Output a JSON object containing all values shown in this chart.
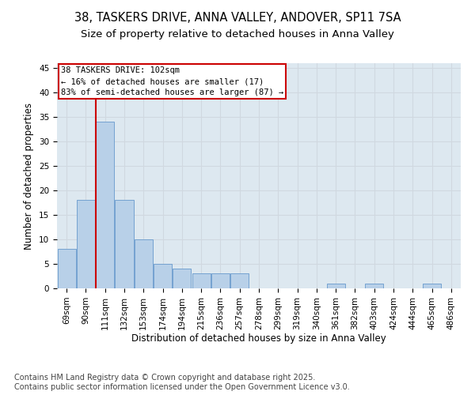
{
  "title_line1": "38, TASKERS DRIVE, ANNA VALLEY, ANDOVER, SP11 7SA",
  "title_line2": "Size of property relative to detached houses in Anna Valley",
  "xlabel": "Distribution of detached houses by size in Anna Valley",
  "ylabel": "Number of detached properties",
  "categories": [
    "69sqm",
    "90sqm",
    "111sqm",
    "132sqm",
    "153sqm",
    "174sqm",
    "194sqm",
    "215sqm",
    "236sqm",
    "257sqm",
    "278sqm",
    "299sqm",
    "319sqm",
    "340sqm",
    "361sqm",
    "382sqm",
    "403sqm",
    "424sqm",
    "444sqm",
    "465sqm",
    "486sqm"
  ],
  "values": [
    8,
    18,
    34,
    18,
    10,
    5,
    4,
    3,
    3,
    3,
    0,
    0,
    0,
    0,
    1,
    0,
    1,
    0,
    0,
    1,
    0
  ],
  "bar_color": "#b8d0e8",
  "bar_edge_color": "#6699cc",
  "property_line_label": "38 TASKERS DRIVE: 102sqm",
  "annotation_line2": "← 16% of detached houses are smaller (17)",
  "annotation_line3": "83% of semi-detached houses are larger (87) →",
  "annotation_box_color": "#ffffff",
  "annotation_box_edge": "#cc0000",
  "vline_color": "#cc0000",
  "vline_x_index": 1.5,
  "ylim": [
    0,
    46
  ],
  "yticks": [
    0,
    5,
    10,
    15,
    20,
    25,
    30,
    35,
    40,
    45
  ],
  "grid_color": "#d0d8e0",
  "bg_color": "#dde8f0",
  "footer_line1": "Contains HM Land Registry data © Crown copyright and database right 2025.",
  "footer_line2": "Contains public sector information licensed under the Open Government Licence v3.0.",
  "title_fontsize": 10.5,
  "subtitle_fontsize": 9.5,
  "axis_label_fontsize": 8.5,
  "tick_fontsize": 7.5,
  "footer_fontsize": 7,
  "annotation_fontsize": 7.5
}
